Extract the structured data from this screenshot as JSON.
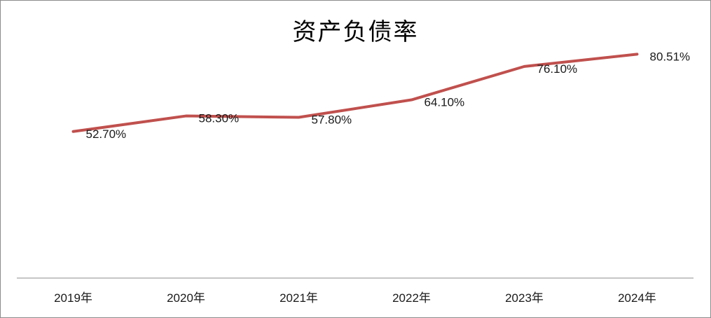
{
  "chart_data": {
    "type": "line",
    "title": "资产负债率",
    "categories": [
      "2019年",
      "2020年",
      "2021年",
      "2022年",
      "2023年",
      "2024年"
    ],
    "series": [
      {
        "values": [
          52.7,
          58.3,
          57.8,
          64.1,
          76.1,
          80.51
        ],
        "labels": [
          "52.70%",
          "58.30%",
          "57.80%",
          "64.10%",
          "76.10%",
          "80.51%"
        ],
        "color": "#C0504D"
      }
    ],
    "xlabel": "",
    "ylabel": "",
    "ylim": [
      0,
      100
    ],
    "grid": false,
    "legend": "none",
    "axis_color": "#8c8c8c"
  }
}
